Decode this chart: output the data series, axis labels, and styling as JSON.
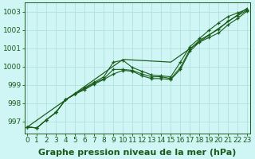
{
  "x": [
    0,
    1,
    2,
    3,
    4,
    5,
    6,
    7,
    8,
    9,
    10,
    11,
    12,
    13,
    14,
    15,
    16,
    17,
    18,
    19,
    20,
    21,
    22,
    23
  ],
  "line1": [
    996.7,
    996.65,
    997.1,
    997.5,
    998.2,
    998.5,
    998.85,
    999.15,
    999.45,
    1000.25,
    1000.35,
    999.95,
    999.75,
    999.55,
    999.5,
    999.45,
    1000.25,
    1001.1,
    1001.55,
    1002.0,
    1002.4,
    1002.75,
    1002.95,
    1003.15
  ],
  "line2": [
    996.7,
    996.65,
    997.1,
    997.5,
    998.2,
    998.5,
    998.8,
    999.1,
    999.35,
    999.85,
    999.85,
    999.8,
    999.6,
    999.45,
    999.45,
    999.35,
    999.95,
    1000.95,
    1001.45,
    1001.75,
    1002.05,
    1002.5,
    1002.8,
    1003.1
  ],
  "line3": [
    996.7,
    996.65,
    997.1,
    997.5,
    998.2,
    998.5,
    998.75,
    999.05,
    999.3,
    999.6,
    999.8,
    999.75,
    999.5,
    999.35,
    999.35,
    999.3,
    999.85,
    1000.85,
    1001.35,
    1001.6,
    1001.85,
    1002.3,
    1002.65,
    1003.05
  ],
  "line_straight": [
    996.7,
    997.07,
    997.44,
    997.81,
    998.18,
    998.55,
    998.92,
    999.29,
    999.66,
    1000.03,
    1000.4,
    1000.37,
    1000.34,
    1000.31,
    1000.28,
    1000.25,
    1000.62,
    1000.99,
    1001.36,
    1001.73,
    1002.1,
    1002.47,
    1002.84,
    1003.21
  ],
  "bg_color": "#cff5f5",
  "grid_color": "#aadedc",
  "line_color": "#1a5c1a",
  "marker": "+",
  "ylabel_ticks": [
    997,
    998,
    999,
    1000,
    1001,
    1002,
    1003
  ],
  "ylim": [
    996.35,
    1003.5
  ],
  "xlim": [
    -0.3,
    23.3
  ],
  "xlabel": "Graphe pression niveau de la mer (hPa)",
  "xlabel_fontsize": 8,
  "tick_fontsize": 6.5
}
